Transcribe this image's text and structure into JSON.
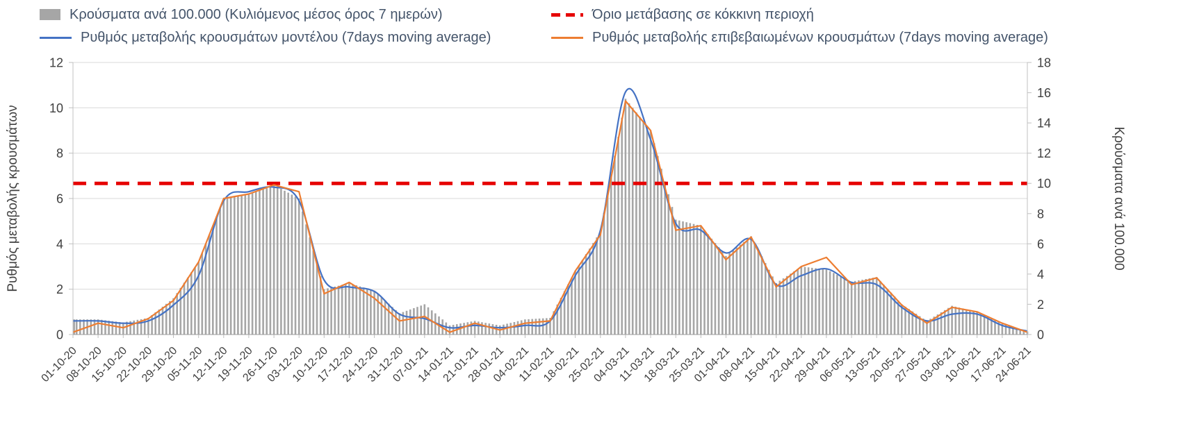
{
  "legend": {
    "items": [
      {
        "label": "Κρούσματα ανά 100.000 (Κυλιόμενος μέσος όρος 7 ημερών)",
        "series": "bars",
        "color": "#a6a6a6"
      },
      {
        "label": "Όριο μετάβασης σε κόκκινη περιοχή",
        "series": "threshold",
        "color": "#e60000"
      },
      {
        "label": "Ρυθμός μεταβολής κρουσμάτων μοντέλου (7days moving average)",
        "series": "model",
        "color": "#4472c4"
      },
      {
        "label": "Ρυθμός μεταβολής επιβεβαιωμένων κρουσμάτων (7days moving average)",
        "series": "confirmed",
        "color": "#ed7d31"
      }
    ]
  },
  "chart_data": {
    "type": "combo",
    "categories": [
      "01-10-20",
      "08-10-20",
      "15-10-20",
      "22-10-20",
      "29-10-20",
      "05-11-20",
      "12-11-20",
      "19-11-20",
      "26-11-20",
      "03-12-20",
      "10-12-20",
      "17-12-20",
      "24-12-20",
      "31-12-20",
      "07-01-21",
      "14-01-21",
      "21-01-21",
      "28-01-21",
      "04-02-21",
      "11-02-21",
      "18-02-21",
      "25-02-21",
      "04-03-21",
      "11-03-21",
      "18-03-21",
      "25-03-21",
      "01-04-21",
      "08-04-21",
      "15-04-21",
      "22-04-21",
      "29-04-21",
      "06-05-21",
      "13-05-21",
      "20-05-21",
      "27-05-21",
      "03-06-21",
      "10-06-21",
      "17-06-21",
      "24-06-21"
    ],
    "series": [
      {
        "key": "bars",
        "name": "Κρούσματα ανά 100.000 (Κυλιόμενος μέσος όρος 7 ημερών)",
        "type": "bar",
        "axis": "right",
        "color": "#a6a6a6",
        "values": [
          1.0,
          1.0,
          0.8,
          1.1,
          2.4,
          4.8,
          9.0,
          9.3,
          9.9,
          9.0,
          3.0,
          3.4,
          2.9,
          1.4,
          2.0,
          0.6,
          0.9,
          0.6,
          1.0,
          1.1,
          4.2,
          6.8,
          15.6,
          13.5,
          7.6,
          7.2,
          5.2,
          6.5,
          3.4,
          4.5,
          4.3,
          3.5,
          3.8,
          2.0,
          0.9,
          1.9,
          1.5,
          0.7,
          0.2
        ]
      },
      {
        "key": "threshold",
        "name": "Όριο μετάβασης σε κόκκινη περιοχή",
        "type": "threshold",
        "axis": "right",
        "value": 10,
        "color": "#e60000"
      },
      {
        "key": "model",
        "name": "Ρυθμός μεταβολής κρουσμάτων μοντέλου (7days moving average)",
        "type": "line",
        "axis": "left",
        "color": "#4472c4",
        "values": [
          0.6,
          0.6,
          0.5,
          0.6,
          1.3,
          2.6,
          5.9,
          6.3,
          6.5,
          5.9,
          2.4,
          2.1,
          1.9,
          0.9,
          0.7,
          0.3,
          0.4,
          0.3,
          0.4,
          0.6,
          2.6,
          4.6,
          10.7,
          8.6,
          4.9,
          4.6,
          3.6,
          4.2,
          2.2,
          2.6,
          2.9,
          2.3,
          2.2,
          1.2,
          0.6,
          0.9,
          0.9,
          0.4,
          0.15
        ]
      },
      {
        "key": "confirmed",
        "name": "Ρυθμός μεταβολής επιβεβαιωμένων κρουσμάτων (7days moving average)",
        "type": "line",
        "axis": "left",
        "color": "#ed7d31",
        "values": [
          0.1,
          0.5,
          0.3,
          0.7,
          1.5,
          3.2,
          6.0,
          6.2,
          6.6,
          6.3,
          1.8,
          2.3,
          1.6,
          0.6,
          0.8,
          0.1,
          0.5,
          0.2,
          0.5,
          0.6,
          2.8,
          4.4,
          10.3,
          9.0,
          4.6,
          4.8,
          3.3,
          4.3,
          2.1,
          3.0,
          3.4,
          2.2,
          2.5,
          1.3,
          0.5,
          1.2,
          1.0,
          0.5,
          0.1
        ]
      }
    ],
    "left_axis": {
      "label": "Ρυθμός μεταβολής κρουσμάτων",
      "min": 0,
      "max": 12,
      "step": 2,
      "ticks": [
        0,
        2,
        4,
        6,
        8,
        10,
        12
      ]
    },
    "right_axis": {
      "label": "Κρούσματα ανά 100.000",
      "min": 0,
      "max": 18,
      "step": 2,
      "ticks": [
        0,
        2,
        4,
        6,
        8,
        10,
        12,
        14,
        16,
        18
      ]
    },
    "grid": true,
    "legend_position": "top"
  }
}
